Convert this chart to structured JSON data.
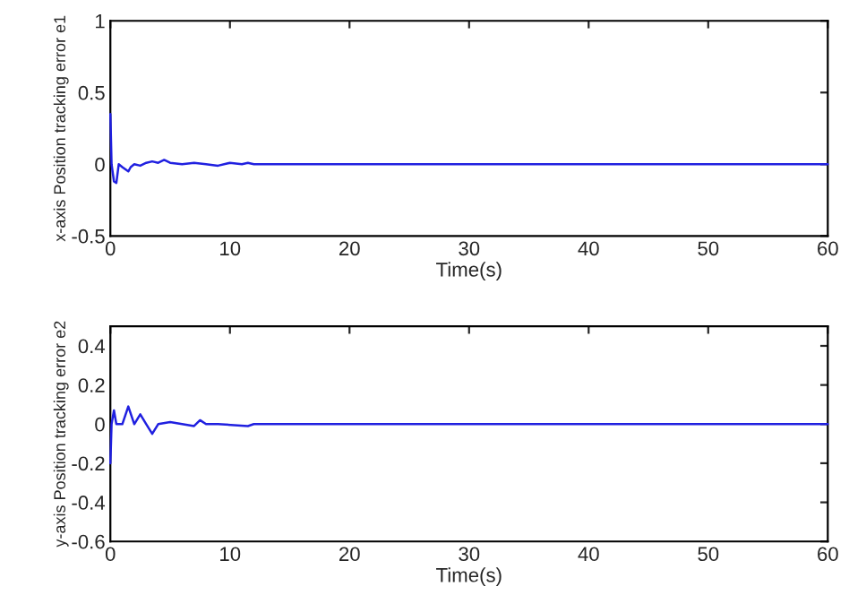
{
  "chart_data": [
    {
      "type": "line",
      "xlabel": "Time(s)",
      "ylabel": "x-axis Position tracking error e1",
      "xlim": [
        0,
        60
      ],
      "xticks": [
        0,
        10,
        20,
        30,
        40,
        50,
        60
      ],
      "ylim": [
        -0.5,
        1
      ],
      "yticks": [
        -0.5,
        0,
        0.5,
        1
      ],
      "grid": false,
      "legend": false,
      "series": [
        {
          "color": "#2020e0",
          "x": [
            0,
            0.1,
            0.3,
            0.5,
            0.7,
            1,
            1.5,
            1.7,
            2,
            2.5,
            3,
            3.5,
            4,
            4.5,
            5,
            6,
            7,
            8,
            9,
            10,
            11,
            11.5,
            12,
            60
          ],
          "values": [
            0.35,
            0.0,
            -0.12,
            -0.13,
            0.0,
            -0.02,
            -0.05,
            -0.02,
            0,
            -0.01,
            0.01,
            0.02,
            0.01,
            0.03,
            0.01,
            0,
            0.01,
            0,
            -0.01,
            0.01,
            0,
            0.01,
            0,
            0
          ]
        }
      ]
    },
    {
      "type": "line",
      "xlabel": "Time(s)",
      "ylabel": "y-axis Position tracking error e2",
      "xlim": [
        0,
        60
      ],
      "xticks": [
        0,
        10,
        20,
        30,
        40,
        50,
        60
      ],
      "ylim": [
        -0.6,
        0.5
      ],
      "yticks": [
        -0.6,
        -0.4,
        -0.2,
        0,
        0.2,
        0.4
      ],
      "grid": false,
      "legend": false,
      "series": [
        {
          "color": "#2020e0",
          "x": [
            0,
            0.1,
            0.3,
            0.5,
            1,
            1.5,
            2,
            2.5,
            3,
            3.5,
            4,
            5,
            6,
            7,
            7.5,
            8,
            9,
            11.5,
            12,
            60
          ],
          "values": [
            -0.2,
            0.0,
            0.07,
            0.0,
            0.0,
            0.09,
            0.0,
            0.05,
            0.0,
            -0.05,
            0,
            0.01,
            0,
            -0.01,
            0.02,
            0,
            0,
            -0.01,
            0,
            0
          ]
        }
      ]
    }
  ]
}
